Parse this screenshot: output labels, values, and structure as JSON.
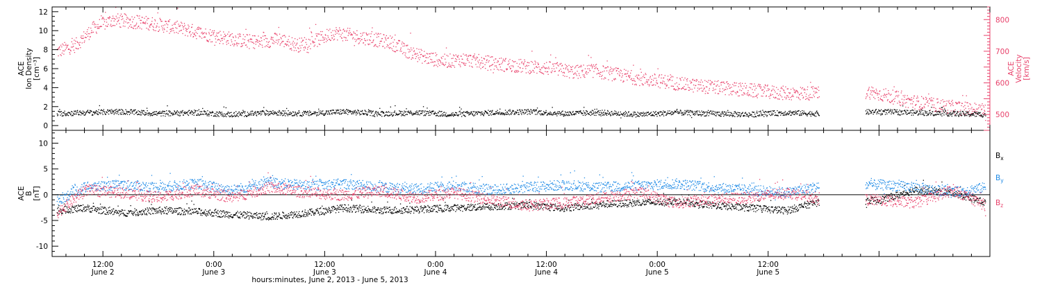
{
  "colors": {
    "density": "#000000",
    "velocity": "#e8406a",
    "bx": "#000000",
    "by": "#1e8ae6",
    "bz": "#e8406a",
    "axis": "#000000"
  },
  "chart_data": [
    {
      "type": "scatter",
      "panel": "top",
      "ylabel_left": [
        "ACE",
        "Ion Density",
        "[cm⁻³]"
      ],
      "ylabel_right": [
        "ACE",
        "Velocity",
        "[km/s]"
      ],
      "ylim_left": [
        -0.5,
        12.5
      ],
      "ylim_right": [
        450,
        840
      ],
      "yticks_left": [
        "0",
        "2",
        "4",
        "6",
        "8",
        "10",
        "12"
      ],
      "yticks_right": [
        "500",
        "600",
        "700",
        "800"
      ],
      "x_hours_range": [
        6.5,
        108
      ],
      "series": [
        {
          "axis": "left",
          "color_key": "density",
          "points": [
            [
              7,
              1.3
            ],
            [
              10,
              1.4
            ],
            [
              14,
              1.5
            ],
            [
              18,
              1.3
            ],
            [
              22,
              1.4
            ],
            [
              26,
              1.2
            ],
            [
              30,
              1.4
            ],
            [
              34,
              1.3
            ],
            [
              38,
              1.5
            ],
            [
              42,
              1.3
            ],
            [
              46,
              1.4
            ],
            [
              50,
              1.2
            ],
            [
              54,
              1.4
            ],
            [
              58,
              1.5
            ],
            [
              62,
              1.3
            ],
            [
              66,
              1.4
            ],
            [
              70,
              1.2
            ],
            [
              74,
              1.4
            ],
            [
              78,
              1.3
            ],
            [
              82,
              1.2
            ],
            [
              86,
              1.4
            ],
            [
              89,
              1.3
            ],
            [
              96,
              1.5
            ],
            [
              100,
              1.4
            ],
            [
              104,
              1.3
            ],
            [
              107.5,
              1.2
            ]
          ]
        },
        {
          "axis": "right",
          "color_key": "velocity",
          "points": [
            [
              7,
              700
            ],
            [
              9,
              720
            ],
            [
              11,
              775
            ],
            [
              13,
              800
            ],
            [
              15,
              795
            ],
            [
              17,
              790
            ],
            [
              19,
              780
            ],
            [
              21,
              770
            ],
            [
              23,
              755
            ],
            [
              25,
              745
            ],
            [
              27,
              735
            ],
            [
              29,
              730
            ],
            [
              31,
              740
            ],
            [
              33,
              720
            ],
            [
              35,
              735
            ],
            [
              37,
              760
            ],
            [
              39,
              750
            ],
            [
              41,
              740
            ],
            [
              43,
              730
            ],
            [
              45,
              700
            ],
            [
              47,
              680
            ],
            [
              49,
              670
            ],
            [
              51,
              675
            ],
            [
              53,
              668
            ],
            [
              55,
              660
            ],
            [
              57,
              655
            ],
            [
              59,
              650
            ],
            [
              61,
              645
            ],
            [
              63,
              635
            ],
            [
              65,
              640
            ],
            [
              67,
              630
            ],
            [
              69,
              620
            ],
            [
              71,
              610
            ],
            [
              73,
              605
            ],
            [
              75,
              595
            ],
            [
              77,
              590
            ],
            [
              79,
              585
            ],
            [
              81,
              580
            ],
            [
              83,
              575
            ],
            [
              85,
              570
            ],
            [
              87,
              568
            ],
            [
              95,
              572
            ],
            [
              97,
              560
            ],
            [
              99,
              545
            ],
            [
              101,
              535
            ],
            [
              103,
              528
            ],
            [
              105,
              520
            ],
            [
              107.5,
              515
            ]
          ]
        }
      ],
      "gaps_hours": [
        [
          89.5,
          94.5
        ]
      ]
    },
    {
      "type": "scatter",
      "panel": "bottom",
      "ylabel_left": [
        "ACE",
        "B",
        "[nT]"
      ],
      "ylim": [
        -12,
        12.5
      ],
      "yticks_left": [
        "-10",
        "-5",
        "0",
        "5",
        "10"
      ],
      "x_hours_range": [
        6.5,
        108
      ],
      "legend": [
        "Bx",
        "By",
        "Bz"
      ],
      "series": [
        {
          "name": "Bx",
          "color_key": "bx",
          "points": [
            [
              7,
              -3
            ],
            [
              10,
              -2.5
            ],
            [
              14,
              -3.5
            ],
            [
              18,
              -3
            ],
            [
              22,
              -3.2
            ],
            [
              26,
              -3.8
            ],
            [
              30,
              -4.2
            ],
            [
              34,
              -3.5
            ],
            [
              38,
              -2.5
            ],
            [
              42,
              -3
            ],
            [
              46,
              -2.8
            ],
            [
              50,
              -2.5
            ],
            [
              54,
              -2.2
            ],
            [
              58,
              -2
            ],
            [
              62,
              -2.5
            ],
            [
              66,
              -1.8
            ],
            [
              70,
              -1.5
            ],
            [
              74,
              -1.2
            ],
            [
              78,
              -2
            ],
            [
              82,
              -2.5
            ],
            [
              86,
              -3
            ],
            [
              89,
              -1.5
            ],
            [
              96,
              -1
            ],
            [
              100,
              1
            ],
            [
              104,
              0.5
            ],
            [
              107.5,
              -1.5
            ]
          ]
        },
        {
          "name": "By",
          "color_key": "by",
          "points": [
            [
              7,
              -1
            ],
            [
              10,
              1.5
            ],
            [
              14,
              2
            ],
            [
              18,
              1.5
            ],
            [
              22,
              2.2
            ],
            [
              26,
              1
            ],
            [
              30,
              2.5
            ],
            [
              34,
              1.8
            ],
            [
              38,
              2.2
            ],
            [
              42,
              1.5
            ],
            [
              46,
              1.2
            ],
            [
              50,
              1.8
            ],
            [
              54,
              1
            ],
            [
              58,
              1.5
            ],
            [
              62,
              2
            ],
            [
              66,
              1.5
            ],
            [
              70,
              1.8
            ],
            [
              74,
              2.2
            ],
            [
              78,
              1.5
            ],
            [
              82,
              1
            ],
            [
              86,
              0.5
            ],
            [
              89,
              1.5
            ],
            [
              96,
              2
            ],
            [
              100,
              1.5
            ],
            [
              104,
              0.5
            ],
            [
              107.5,
              1.5
            ]
          ]
        },
        {
          "name": "Bz",
          "color_key": "bz",
          "points": [
            [
              7,
              -3.5
            ],
            [
              10,
              1
            ],
            [
              14,
              0.5
            ],
            [
              18,
              -0.5
            ],
            [
              22,
              1
            ],
            [
              26,
              -0.5
            ],
            [
              30,
              1.5
            ],
            [
              34,
              0.5
            ],
            [
              38,
              0
            ],
            [
              42,
              0.8
            ],
            [
              46,
              -0.5
            ],
            [
              50,
              0.5
            ],
            [
              54,
              -1
            ],
            [
              58,
              -2
            ],
            [
              62,
              -1.5
            ],
            [
              66,
              -0.5
            ],
            [
              70,
              0.5
            ],
            [
              74,
              -1.5
            ],
            [
              78,
              -0.8
            ],
            [
              82,
              -0.5
            ],
            [
              86,
              0.5
            ],
            [
              89,
              -0.5
            ],
            [
              96,
              -1
            ],
            [
              100,
              -1.5
            ],
            [
              104,
              1
            ],
            [
              107.5,
              -2
            ]
          ]
        }
      ],
      "gaps_hours": [
        [
          89.5,
          94.5
        ]
      ]
    }
  ],
  "x_axis": {
    "ticks": [
      {
        "hour": 12,
        "time": "12:00",
        "date": "June 2"
      },
      {
        "hour": 24,
        "time": "0:00",
        "date": "June 3"
      },
      {
        "hour": 36,
        "time": "12:00",
        "date": "June 3"
      },
      {
        "hour": 48,
        "time": "0:00",
        "date": "June 4"
      },
      {
        "hour": 60,
        "time": "12:00",
        "date": "June 4"
      },
      {
        "hour": 72,
        "time": "0:00",
        "date": "June 5"
      },
      {
        "hour": 84,
        "time": "12:00",
        "date": "June 5"
      }
    ],
    "minor_every_hours": 2,
    "label": "hours:minutes,  June  2, 2013 - June  5, 2013"
  },
  "legend_labels": [
    {
      "base": "B",
      "sub": "x",
      "color_key": "bx"
    },
    {
      "base": "B",
      "sub": "y",
      "color_key": "by"
    },
    {
      "base": "B",
      "sub": "z",
      "color_key": "bz"
    }
  ]
}
